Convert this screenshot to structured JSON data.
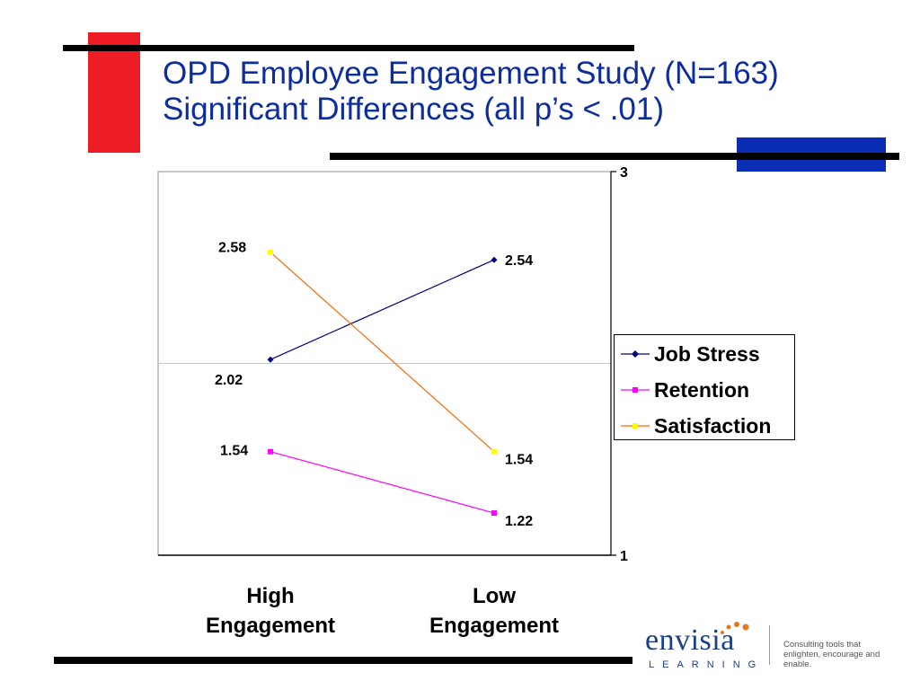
{
  "slide": {
    "title_line1": "OPD Employee Engagement Study (N=163)",
    "title_line2": "Significant Differences (all p’s < .01)"
  },
  "colors": {
    "title": "#0d2c9e",
    "accent_red": "#ee1c25",
    "accent_blue": "#0a2db4",
    "rule": "#000000"
  },
  "logo": {
    "name": "envisia",
    "sub": "LEARNING",
    "tagline_line1": "Consulting tools that",
    "tagline_line2": "enlighten, encourage and enable."
  },
  "chart_data": {
    "type": "line",
    "categories": [
      "High Engagement",
      "Low Engagement"
    ],
    "category_lines": [
      [
        "High",
        "Engagement"
      ],
      [
        "Low",
        "Engagement"
      ]
    ],
    "series": [
      {
        "name": "Job Stress",
        "values": [
          2.02,
          2.54
        ],
        "color": "#00007f",
        "marker": "diamond"
      },
      {
        "name": "Retention",
        "values": [
          1.54,
          1.22
        ],
        "color": "#ff00ff",
        "marker": "square"
      },
      {
        "name": "Satisfaction",
        "values": [
          2.58,
          1.54
        ],
        "color": "#ff6600",
        "marker_color": "#ffff00",
        "marker": "square"
      }
    ],
    "data_labels": [
      [
        "2.02",
        "2.54"
      ],
      [
        "1.54",
        "1.22"
      ],
      [
        "2.58",
        "1.54"
      ]
    ],
    "ylim": [
      1,
      3
    ],
    "y_tick_labels": [
      "1",
      "3"
    ],
    "y_axis_position": "right",
    "legend_position": "right",
    "gridline_value": 2,
    "grid": false
  }
}
